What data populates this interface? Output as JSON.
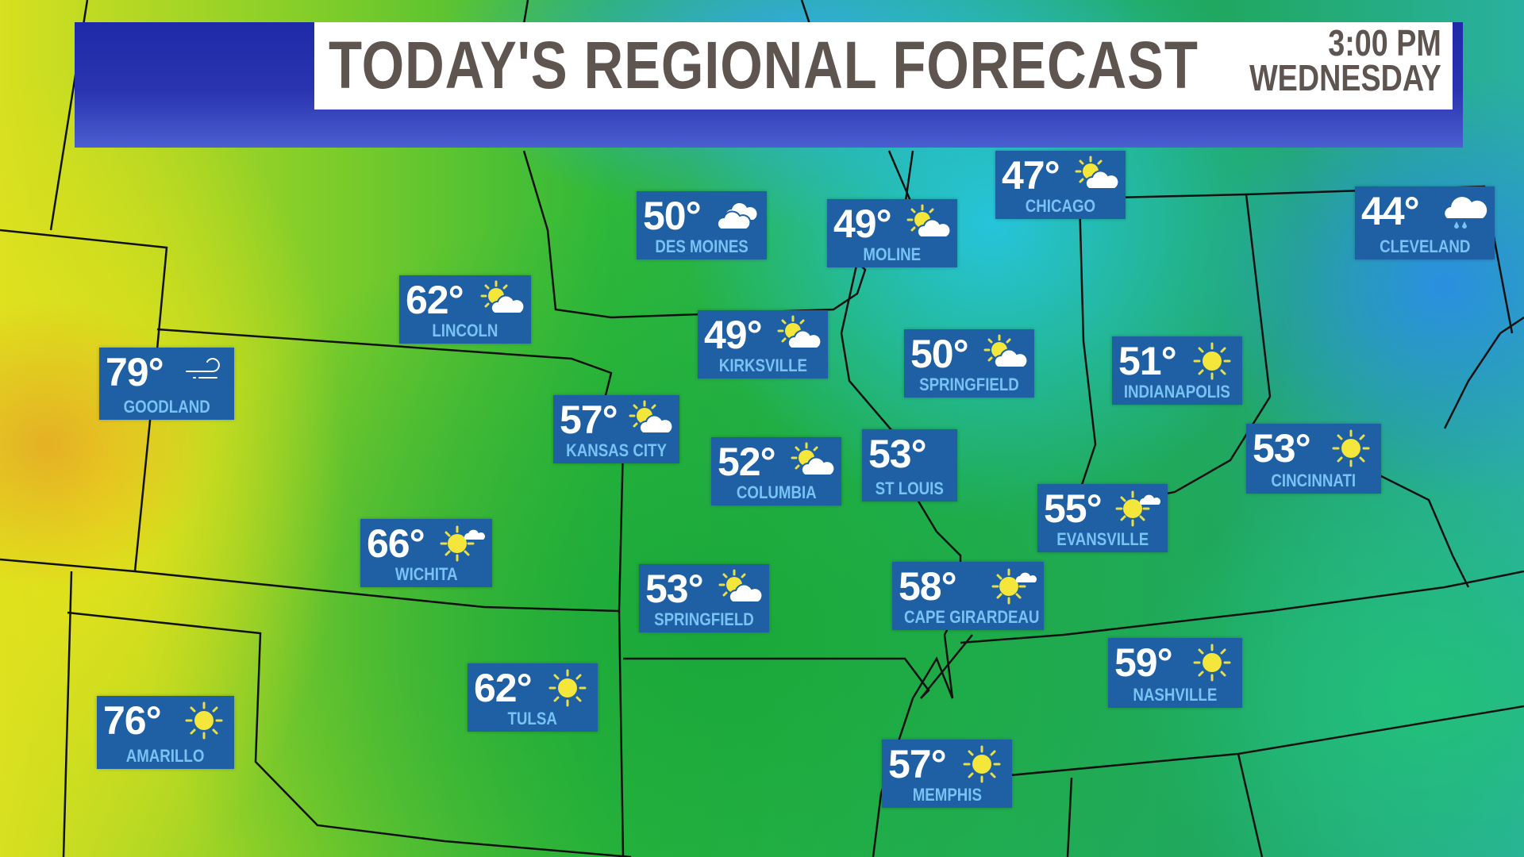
{
  "header": {
    "title": "TODAY'S REGIONAL FORECAST",
    "time": "3:00 PM",
    "day": "WEDNESDAY"
  },
  "colors": {
    "banner": "#1e2aa8",
    "card": "#1f5fa3",
    "city_text": "#78c3f4",
    "title_text": "#5e5550"
  },
  "cities": [
    {
      "temp": "50°",
      "name": "DES MOINES",
      "icon": "mostly-cloudy-icon"
    },
    {
      "temp": "49°",
      "name": "MOLINE",
      "icon": "partly-cloudy-icon"
    },
    {
      "temp": "47°",
      "name": "CHICAGO",
      "icon": "partly-cloudy-icon"
    },
    {
      "temp": "44°",
      "name": "CLEVELAND",
      "icon": "rain-cloud-icon"
    },
    {
      "temp": "62°",
      "name": "LINCOLN",
      "icon": "partly-cloudy-icon"
    },
    {
      "temp": "79°",
      "name": "GOODLAND",
      "icon": "wind-icon"
    },
    {
      "temp": "49°",
      "name": "KIRKSVILLE",
      "icon": "partly-cloudy-icon"
    },
    {
      "temp": "50°",
      "name": "SPRINGFIELD",
      "icon": "partly-cloudy-icon"
    },
    {
      "temp": "51°",
      "name": "INDIANAPOLIS",
      "icon": "sun-icon"
    },
    {
      "temp": "57°",
      "name": "KANSAS CITY",
      "icon": "partly-cloudy-icon"
    },
    {
      "temp": "52°",
      "name": "COLUMBIA",
      "icon": "partly-cloudy-icon"
    },
    {
      "temp": "53°",
      "name": "ST LOUIS",
      "icon": ""
    },
    {
      "temp": "53°",
      "name": "CINCINNATI",
      "icon": "sun-icon"
    },
    {
      "temp": "55°",
      "name": "EVANSVILLE",
      "icon": "mostly-sunny-icon"
    },
    {
      "temp": "66°",
      "name": "WICHITA",
      "icon": "mostly-sunny-icon"
    },
    {
      "temp": "53°",
      "name": "SPRINGFIELD",
      "icon": "partly-cloudy-icon"
    },
    {
      "temp": "58°",
      "name": "CAPE GIRARDEAU",
      "icon": "mostly-sunny-icon"
    },
    {
      "temp": "59°",
      "name": "NASHVILLE",
      "icon": "sun-icon"
    },
    {
      "temp": "62°",
      "name": "TULSA",
      "icon": "sun-icon"
    },
    {
      "temp": "76°",
      "name": "AMARILLO",
      "icon": "sun-icon"
    },
    {
      "temp": "57°",
      "name": "MEMPHIS",
      "icon": "sun-icon"
    }
  ]
}
